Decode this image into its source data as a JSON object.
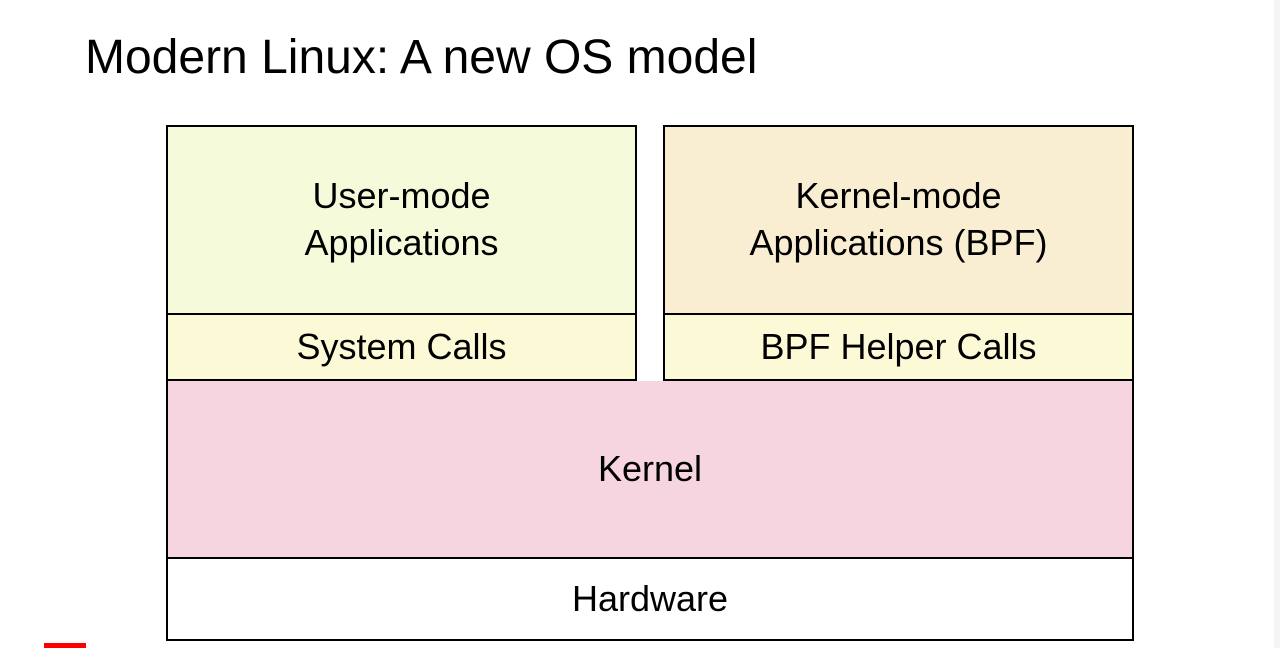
{
  "title": "Modern Linux: A new OS model",
  "diagram": {
    "type": "layered-architecture",
    "layout": {
      "top_left": {
        "app": {
          "label": "User-mode\nApplications",
          "bg_color": "#f5fadb"
        },
        "calls": {
          "label": "System Calls",
          "bg_color": "#fcfad6"
        }
      },
      "top_right": {
        "app": {
          "label": "Kernel-mode\nApplications (BPF)",
          "bg_color": "#f9edd2"
        },
        "calls": {
          "label": "BPF Helper Calls",
          "bg_color": "#fcfad6"
        }
      },
      "kernel": {
        "label": "Kernel",
        "bg_color": "#f6d4e0"
      },
      "hardware": {
        "label": "Hardware",
        "bg_color": "#ffffff"
      }
    },
    "border_color": "#000000",
    "border_width": 2,
    "font_size": 36,
    "title_font_size": 48,
    "text_color": "#000000",
    "gap_between_columns": 26
  },
  "page_bg": "#ffffff",
  "progress_indicator_color": "#ff0000"
}
